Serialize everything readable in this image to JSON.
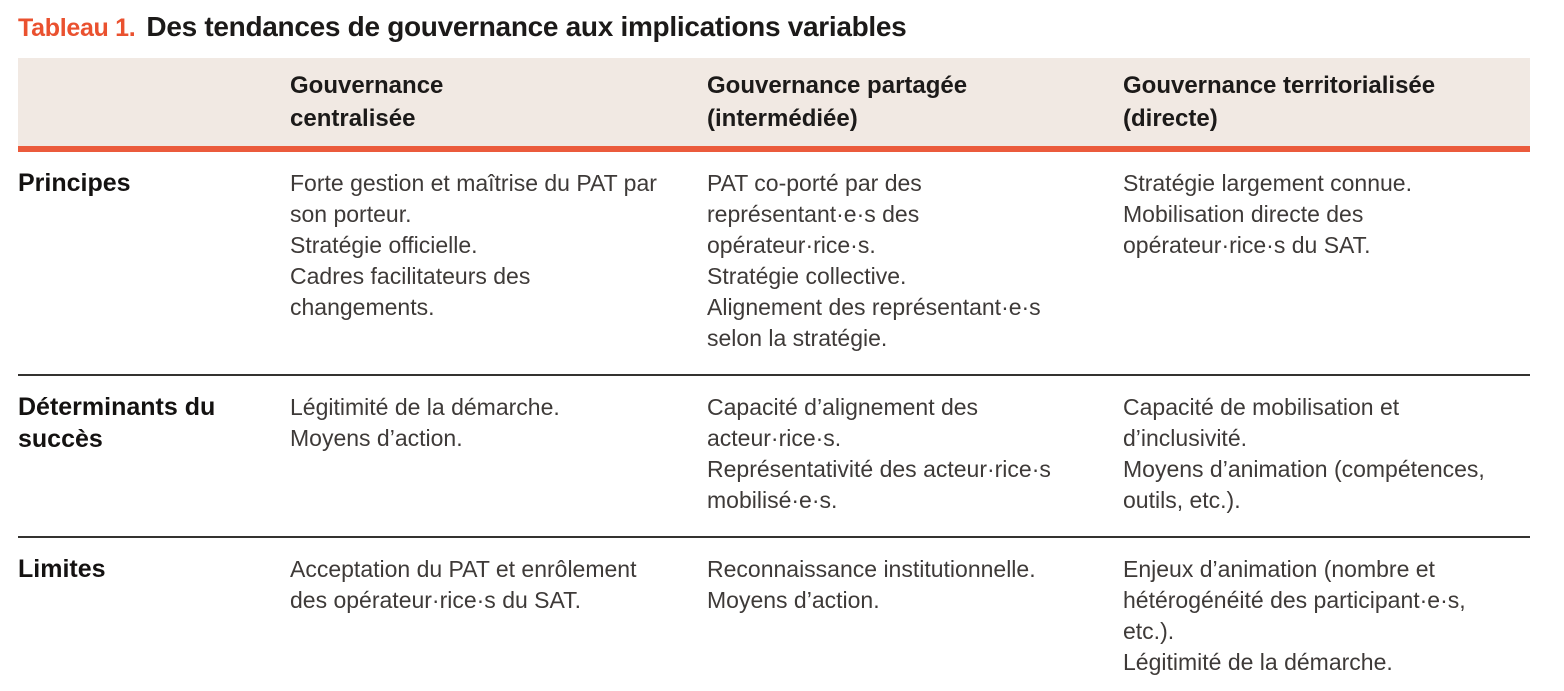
{
  "title": {
    "label": "Tableau 1.",
    "text": "Des tendances de gouvernance aux implications variables"
  },
  "colors": {
    "accent_orange": "#eb5b3c",
    "title_label_orange": "#ea512f",
    "header_background": "#f1e9e3",
    "rule_dark": "#343230",
    "body_text": "#3e3a38",
    "heading_text": "#1c1a19"
  },
  "table": {
    "headers": [
      "",
      "Gouvernance\ncentralisée",
      "Gouvernance partagée\n(intermédiée)",
      "Gouvernance territorialisée\n(directe)"
    ],
    "rows": [
      {
        "label": "Principes",
        "cells": [
          "Forte gestion et maîtrise du PAT par son porteur.\nStratégie officielle.\nCadres facilitateurs des changements.",
          "PAT co-porté par des représentant·e·s des opérateur·rice·s.\nStratégie collective.\nAlignement des représentant·e·s selon la stratégie.",
          "Stratégie largement connue.\nMobilisation directe des opérateur·rice·s du SAT."
        ]
      },
      {
        "label": "Déterminants du succès",
        "cells": [
          "Légitimité de la démarche.\nMoyens d’action.",
          "Capacité d’alignement des acteur·rice·s.\nReprésentativité des acteur·rice·s mobilisé·e·s.",
          "Capacité de mobilisation et d’inclusivité.\nMoyens d’animation (compétences, outils, etc.)."
        ]
      },
      {
        "label": "Limites",
        "cells": [
          "Acceptation du PAT et enrôlement des opérateur·rice·s du SAT.",
          "Reconnaissance institutionnelle.\nMoyens d’action.",
          "Enjeux d’animation (nombre et hétérogénéité des participant·e·s, etc.).\nLégitimité de la démarche."
        ]
      }
    ]
  }
}
